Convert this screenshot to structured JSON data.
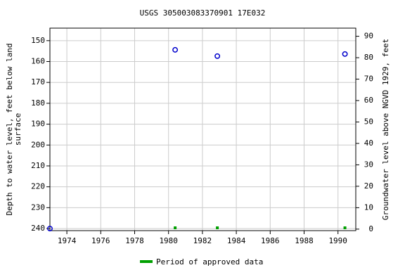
{
  "chart_data": {
    "type": "scatter",
    "title": "USGS 305003083370901 17E032",
    "y_label_lines": [
      "Depth to water level, feet below land",
      "surface"
    ],
    "y2_label": "Groundwater level above NGVD 1929, feet",
    "x": [
      1973.0,
      1980.39,
      1982.88,
      1990.41
    ],
    "series": [
      {
        "name": "Depth to water level",
        "color": "#0000cc",
        "values": [
          240,
          154.4,
          157.4,
          156.4
        ]
      }
    ],
    "approved": {
      "name": "Period of approved data",
      "color": "#00a000",
      "x": [
        1980.39,
        1982.88,
        1990.41
      ]
    },
    "xlim": [
      1973.0,
      1991.05
    ],
    "xticks": [
      1974,
      1976,
      1978,
      1980,
      1982,
      1984,
      1986,
      1988,
      1990
    ],
    "ylim": [
      241,
      144
    ],
    "yticks": [
      150,
      160,
      170,
      180,
      190,
      200,
      210,
      220,
      230,
      240
    ],
    "y2lim": [
      -0.7,
      93.8
    ],
    "y2ticks": [
      0,
      10,
      20,
      30,
      40,
      50,
      60,
      70,
      80,
      90
    ],
    "grid": true,
    "grid_color": "#cccccc"
  }
}
